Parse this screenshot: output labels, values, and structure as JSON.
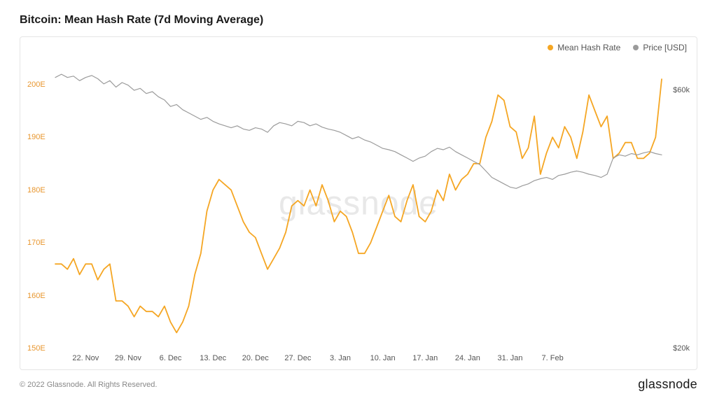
{
  "title": "Bitcoin: Mean Hash Rate (7d Moving Average)",
  "watermark": "glassnode",
  "copyright": "© 2022 Glassnode. All Rights Reserved.",
  "brand": "glassnode",
  "chart": {
    "type": "line",
    "background_color": "#ffffff",
    "border_color": "#e5e5e5",
    "legend_position": "top-right",
    "series": [
      {
        "name": "Mean Hash Rate",
        "color": "#f5a623",
        "line_width": 1.8,
        "axis": "left",
        "data": [
          166,
          166,
          165,
          167,
          164,
          166,
          166,
          163,
          165,
          166,
          159,
          159,
          158,
          156,
          158,
          157,
          157,
          156,
          158,
          155,
          153,
          155,
          158,
          164,
          168,
          176,
          180,
          182,
          181,
          180,
          177,
          174,
          172,
          171,
          168,
          165,
          167,
          169,
          172,
          177,
          178,
          177,
          180,
          177,
          181,
          178,
          174,
          176,
          175,
          172,
          168,
          168,
          170,
          173,
          176,
          179,
          175,
          174,
          178,
          181,
          175,
          174,
          176,
          180,
          178,
          183,
          180,
          182,
          183,
          185,
          185,
          190,
          193,
          198,
          197,
          192,
          191,
          186,
          188,
          194,
          183,
          187,
          190,
          188,
          192,
          190,
          186,
          191,
          198,
          195,
          192,
          194,
          186,
          187,
          189,
          189,
          186,
          186,
          187,
          190,
          201
        ]
      },
      {
        "name": "Price [USD]",
        "color": "#9b9b9b",
        "line_width": 1.2,
        "axis": "right",
        "data": [
          62,
          62.5,
          62,
          62.2,
          61.5,
          62,
          62.3,
          61.8,
          61,
          61.5,
          60.5,
          61.2,
          60.8,
          60,
          60.3,
          59.5,
          59.8,
          59,
          58.5,
          57.5,
          57.8,
          57,
          56.5,
          56,
          55.5,
          55.8,
          55.2,
          54.8,
          54.5,
          54.2,
          54.5,
          54,
          53.8,
          54.2,
          54,
          53.5,
          54.5,
          55,
          54.8,
          54.5,
          55.2,
          55,
          54.5,
          54.8,
          54.3,
          54,
          53.8,
          53.5,
          53,
          52.5,
          52.8,
          52.3,
          52,
          51.5,
          51,
          50.8,
          50.5,
          50,
          49.5,
          49,
          49.5,
          49.8,
          50.5,
          51,
          50.8,
          51.2,
          50.5,
          50,
          49.5,
          49,
          48.5,
          47.5,
          46.5,
          46,
          45.5,
          45,
          44.8,
          45.2,
          45.5,
          46,
          46.3,
          46.5,
          46.2,
          46.8,
          47,
          47.3,
          47.5,
          47.3,
          47,
          46.8,
          46.5,
          47,
          49.5,
          50,
          49.8,
          50.2,
          50,
          50.3,
          50.5,
          50.2,
          50
        ]
      }
    ],
    "y_left": {
      "min": 150,
      "max": 205,
      "ticks": [
        150,
        160,
        170,
        180,
        190,
        200
      ],
      "tick_labels": [
        "150E",
        "160E",
        "170E",
        "180E",
        "190E",
        "200E"
      ],
      "color": "#f5a623"
    },
    "y_right": {
      "min": 20,
      "max": 65,
      "ticks": [
        20,
        60
      ],
      "tick_labels": [
        "$20k",
        "$60k"
      ],
      "color": "#555555"
    },
    "x": {
      "n_points": 101,
      "tick_indices": [
        5,
        12,
        19,
        26,
        33,
        40,
        47,
        54,
        61,
        68,
        75,
        82,
        89
      ],
      "tick_labels": [
        "22. Nov",
        "29. Nov",
        "6. Dec",
        "13. Dec",
        "20. Dec",
        "27. Dec",
        "3. Jan",
        "10. Jan",
        "17. Jan",
        "24. Jan",
        "31. Jan",
        "7. Feb",
        ""
      ]
    }
  }
}
